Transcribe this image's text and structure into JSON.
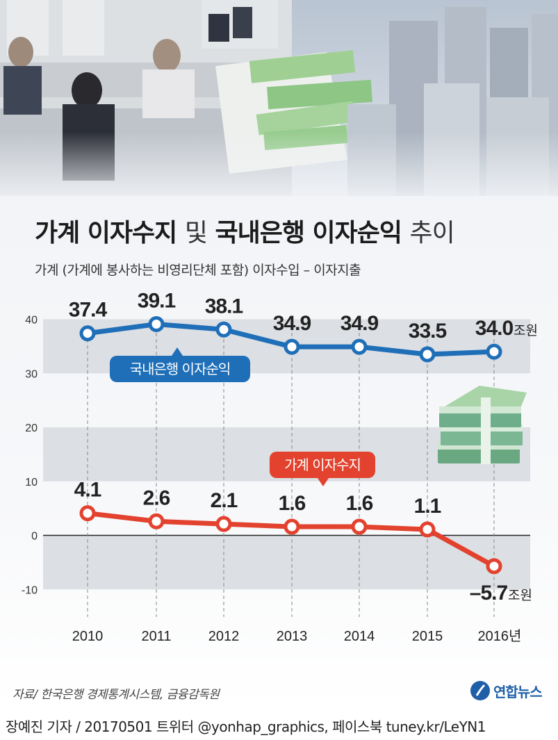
{
  "title": {
    "bold1": "가계 이자수지",
    "mid": "및",
    "bold2": "국내은행 이자순익",
    "tail": "추이"
  },
  "subtitle": "가계 (가계에 봉사하는 비영리단체 포함) 이자수입 – 이자지출",
  "source": "자료/ 한국은행 경제통계시스템, 금융감독원",
  "logo": "연합뉴스",
  "credit": "장예진 기자 / 20170501 트위터 @yonhap_graphics, 페이스북 tuney.kr/LeYN1",
  "colors": {
    "blue": "#1f6fb8",
    "red": "#e2422e",
    "band": "#dcdfe3"
  },
  "icons": [
    "photo-banner",
    "money-stack-icon",
    "yonhap-logo-icon"
  ],
  "chart_data": {
    "type": "line",
    "x": [
      "2010",
      "2011",
      "2012",
      "2013",
      "2014",
      "2015",
      "2016년"
    ],
    "ylim": [
      -13,
      43
    ],
    "yticks": [
      "40",
      "30",
      "20",
      "10",
      "0",
      "-10"
    ],
    "series": [
      {
        "name": "국내은행 이자순익",
        "values": [
          37.4,
          39.1,
          38.1,
          34.9,
          34.9,
          33.5,
          34.0
        ],
        "labels": [
          "37.4",
          "39.1",
          "38.1",
          "34.9",
          "34.9",
          "33.5",
          "34.0"
        ],
        "unit": "조원"
      },
      {
        "name": "가계 이자수지",
        "values": [
          4.1,
          2.6,
          2.1,
          1.6,
          1.6,
          1.1,
          -5.7
        ],
        "labels": [
          "4.1",
          "2.6",
          "2.1",
          "1.6",
          "1.6",
          "1.1",
          "–5.7"
        ],
        "unit": "조원"
      }
    ]
  }
}
